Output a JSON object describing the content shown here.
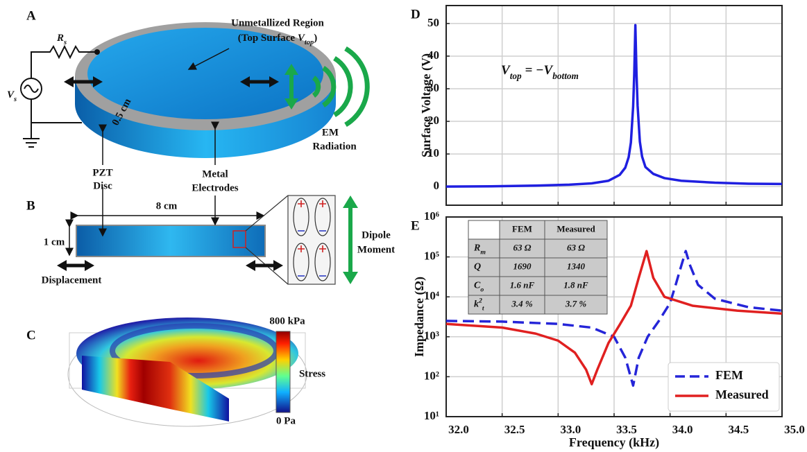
{
  "figure": {
    "panel_a": {
      "label": "A",
      "resistor": {
        "symbol": "R",
        "sub": "s"
      },
      "source": {
        "symbol": "V",
        "sub": "s"
      },
      "region_title": "Unmetallized Region",
      "region_sub": {
        "prefix": "(Top Surface ",
        "symbol": "V",
        "sub": "top",
        "suffix": ")"
      },
      "thickness": "0.5 cm",
      "em": [
        "EM",
        "Radiation"
      ],
      "pzt": [
        "PZT",
        "Disc"
      ],
      "metal": [
        "Metal",
        "Electrodes"
      ]
    },
    "panel_b": {
      "label": "B",
      "width": "8 cm",
      "height": "1 cm",
      "displacement": "Displacement",
      "dipole": [
        "Dipole",
        "Moment"
      ]
    },
    "panel_c": {
      "label": "C",
      "max": "800 kPa",
      "quantity": "Stress",
      "min": "0 Pa"
    }
  },
  "chart_data": [
    {
      "type": "line",
      "panel": "D",
      "ylabel": "Surface Voltage (V)",
      "xlim": [
        32,
        35
      ],
      "xticks": [
        32,
        32.5,
        33,
        33.5,
        34,
        34.5,
        35
      ],
      "ylim": [
        -5.7,
        55.5
      ],
      "yticks": [
        0,
        10,
        20,
        30,
        40,
        50
      ],
      "grid": true,
      "annotation": {
        "v1": "V",
        "sub1": "top",
        "eq": " = −",
        "v2": "V",
        "sub2": "bottom"
      },
      "series": [
        {
          "color": "#1f1fe0",
          "x": [
            32.0,
            32.4,
            32.8,
            33.1,
            33.3,
            33.45,
            33.55,
            33.6,
            33.63,
            33.65,
            33.67,
            33.68,
            33.69,
            33.7,
            33.71,
            33.73,
            33.75,
            33.78,
            33.85,
            33.95,
            34.1,
            34.4,
            34.7,
            35.0
          ],
          "values": [
            0.0,
            0.1,
            0.3,
            0.6,
            1.0,
            1.8,
            3.6,
            5.8,
            9.0,
            13.5,
            24.5,
            34.6,
            49.5,
            34.8,
            24.8,
            13.8,
            9.2,
            6.0,
            3.9,
            2.6,
            1.8,
            1.2,
            0.9,
            0.8
          ]
        }
      ]
    },
    {
      "type": "line",
      "panel": "E",
      "xlabel": "Frequency (kHz)",
      "ylabel": "Impedance (Ω)",
      "xlim": [
        32,
        35
      ],
      "xticks": [
        {
          "value": 32,
          "label": "32.0"
        },
        32.5,
        {
          "value": 33,
          "label": "33.0"
        },
        33.5,
        {
          "value": 34,
          "label": "34.0"
        },
        34.5,
        {
          "value": 35,
          "label": "35.0"
        }
      ],
      "ylim": [
        10,
        1000000
      ],
      "yscale": "log",
      "yticks": [
        {
          "value": 10,
          "label": "10¹"
        },
        {
          "value": 100,
          "label": "10²"
        },
        {
          "value": 1000,
          "label": "10³"
        },
        {
          "value": 10000,
          "label": "10⁴"
        },
        {
          "value": 100000,
          "label": "10⁵"
        },
        {
          "value": 1000000,
          "label": "10⁶"
        }
      ],
      "grid": true,
      "legend": "lower right",
      "series": [
        {
          "name": "FEM",
          "color": "#2525d8",
          "style": "dashed",
          "x": [
            32.0,
            32.5,
            33.0,
            33.3,
            33.5,
            33.6,
            33.67,
            33.72,
            33.8,
            33.9,
            34.0,
            34.05,
            34.1,
            34.14,
            34.18,
            34.25,
            34.4,
            34.7,
            35.0
          ],
          "values": [
            2500,
            2400,
            2100,
            1700,
            1000,
            300,
            60,
            300,
            1000,
            2500,
            7000,
            20000,
            60000,
            140000,
            60000,
            20000,
            9000,
            5500,
            4500
          ]
        },
        {
          "name": "Measured",
          "color": "#e02020",
          "style": "solid",
          "x": [
            32.0,
            32.5,
            32.8,
            33.0,
            33.15,
            33.25,
            33.3,
            33.35,
            33.45,
            33.55,
            33.65,
            33.72,
            33.79,
            33.85,
            33.95,
            34.2,
            34.6,
            35.0
          ],
          "values": [
            2100,
            1700,
            1200,
            800,
            400,
            150,
            65,
            150,
            700,
            2000,
            6000,
            30000,
            140000,
            30000,
            10000,
            6000,
            4500,
            3800
          ]
        }
      ],
      "table": {
        "header": [
          "FEM",
          "Measured"
        ],
        "rows": [
          {
            "symbol": "R",
            "sub": "m",
            "fem": "63 Ω",
            "measured": "63 Ω"
          },
          {
            "symbol": "Q",
            "fem": "1690",
            "measured": "1340"
          },
          {
            "symbol": "C",
            "sub": "o",
            "fem": "1.6 nF",
            "measured": "1.8 nF"
          },
          {
            "symbol": "k",
            "sub": "t",
            "sup": "2",
            "fem": "3.4 %",
            "measured": "3.7 %"
          }
        ]
      }
    }
  ]
}
